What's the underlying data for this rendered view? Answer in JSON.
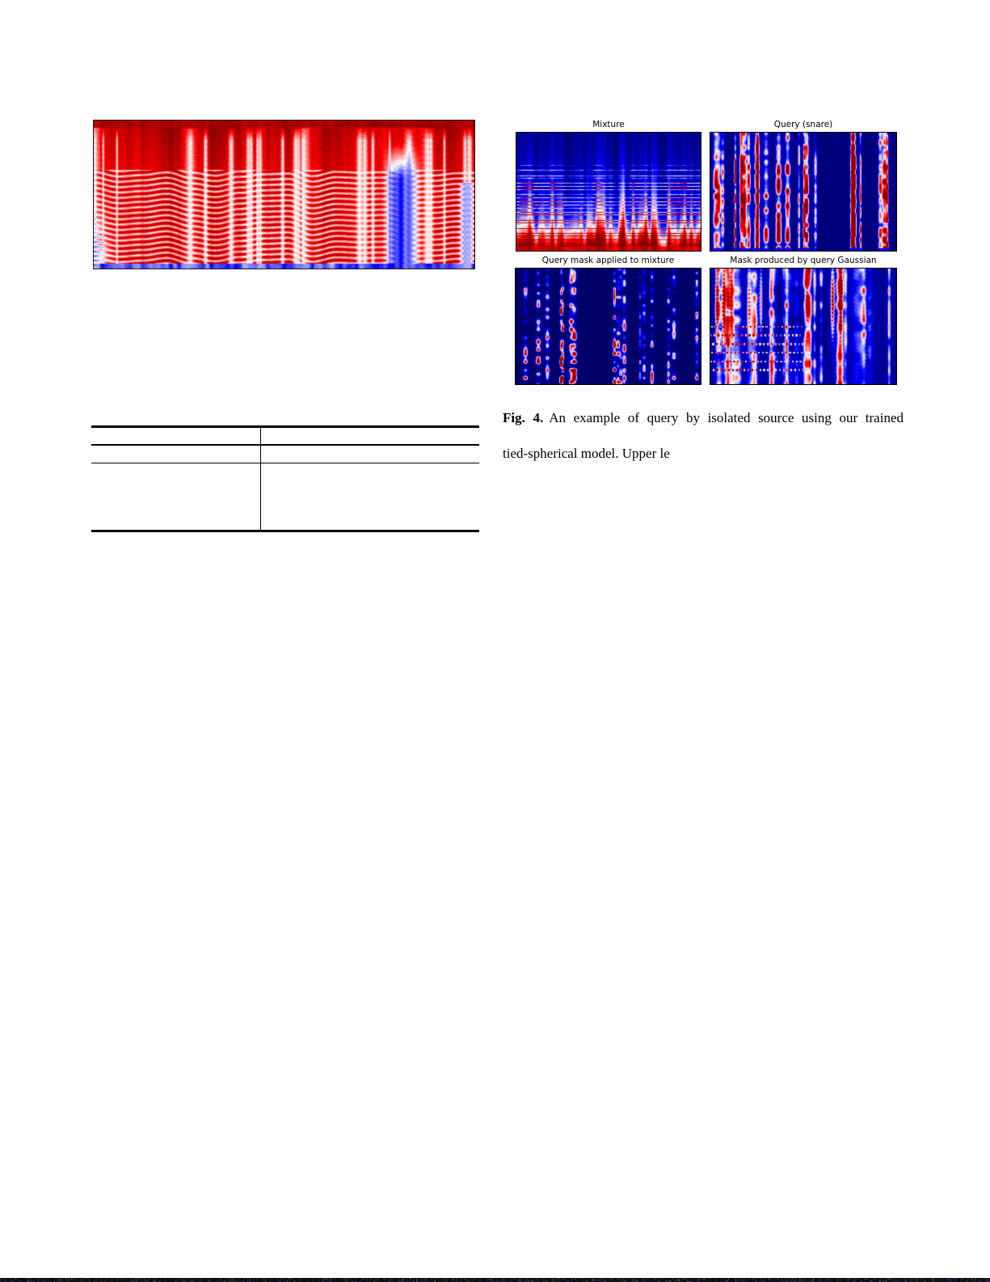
{
  "page": {
    "kind": "academic paper page (partially rendered)",
    "background_color": "#ffffff"
  },
  "left_column": {
    "spectrogram_figure": {
      "description": "large uncaptioned spectrogram image, mostly red/white with blue regions",
      "colormap": "blue-white-red"
    },
    "table_skeleton": {
      "columns": 2,
      "rows": 3,
      "visible_text": ""
    }
  },
  "right_column": {
    "figure4": {
      "panel_titles": [
        "Mixture",
        "Query (snare)",
        "Query mask applied to mixture",
        "Mask produced by query Gaussian"
      ],
      "colormap": "blue-white-red",
      "caption": {
        "label": "Fig. 4.",
        "line1": "An example of query by isolated source using our trained",
        "line2": "tied-spherical model. Upper le"
      }
    }
  },
  "artifacts": {
    "bottom_edge_strip": "dark noisy scan artifact along the bottom page edge"
  },
  "colors": {
    "ink": "#000000",
    "spectrogram_red": "#ff0000",
    "spectrogram_blue": "#0000ff",
    "panel_navy": "#00005f"
  }
}
